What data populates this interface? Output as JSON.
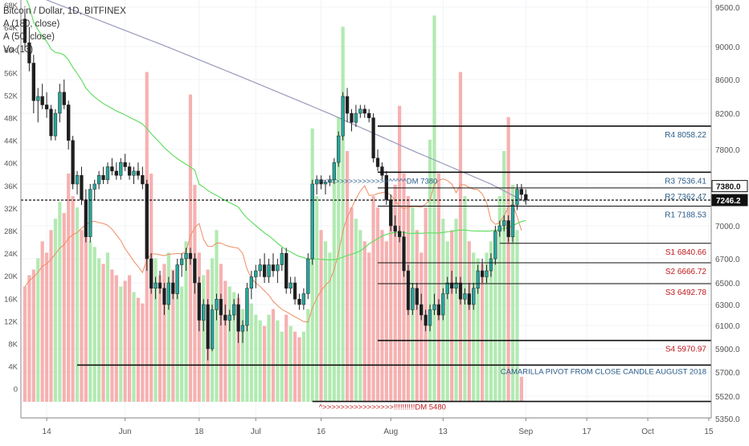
{
  "legend": {
    "title": "Bitcoin / Dollar, 1D, BITFINEX",
    "ma180": "A (180, close)",
    "ma50": "A (50, close)",
    "vol": "Vo (13)"
  },
  "colors": {
    "up": "#26a69a",
    "down": "#ef5350",
    "vol_up": "#a5e6a5",
    "vol_down": "#f4a3a3",
    "ma180": "#9999bb",
    "ma50": "#66dd66",
    "volma": "#f08c60",
    "pivot_blue": "#2b5c8a",
    "pivot_red": "#c0181b",
    "axis_text": "#555555"
  },
  "chart_data": {
    "type": "candlestick",
    "title": "Bitcoin / Dollar, 1D, BITFINEX",
    "price_axis": [
      {
        "value": 9500,
        "label": "9500.0"
      },
      {
        "value": 9000,
        "label": "9000.0"
      },
      {
        "value": 8600,
        "label": "8600.0"
      },
      {
        "value": 8200,
        "label": "8200.0"
      },
      {
        "value": 7800,
        "label": "7800.0"
      },
      {
        "value": 7400,
        "label": "7400.0"
      },
      {
        "value": 7000,
        "label": "7000.0"
      },
      {
        "value": 6700,
        "label": "6700.0"
      },
      {
        "value": 6500,
        "label": "6500.0"
      },
      {
        "value": 6300,
        "label": "6300.0"
      },
      {
        "value": 6100,
        "label": "6100.0"
      },
      {
        "value": 5900,
        "label": "5900.0"
      },
      {
        "value": 5700,
        "label": "5700.0"
      },
      {
        "value": 5520,
        "label": "5520.0"
      },
      {
        "value": 5350,
        "label": "5350.0"
      }
    ],
    "volume_axis": [
      "68K",
      "64K",
      "60K",
      "56K",
      "52K",
      "48K",
      "44K",
      "40K",
      "36K",
      "32K",
      "28K",
      "24K",
      "20K",
      "16K",
      "12K",
      "8K",
      "4K",
      "0"
    ],
    "x_labels": [
      {
        "label": "14",
        "day": 5
      },
      {
        "label": "Jun",
        "day": 23
      },
      {
        "label": "18",
        "day": 40
      },
      {
        "label": "Jul",
        "day": 53
      },
      {
        "label": "16",
        "day": 68
      },
      {
        "label": "Aug",
        "day": 84
      },
      {
        "label": "13",
        "day": 96
      },
      {
        "label": "Sep",
        "day": 115
      },
      {
        "label": "17",
        "day": 129
      },
      {
        "label": "Oct",
        "day": 143
      },
      {
        "label": "15",
        "day": 157
      }
    ],
    "price_markers": [
      {
        "value": 7380,
        "label": "7380.0",
        "style": "outline"
      },
      {
        "value": 7246.2,
        "label": "7246.2",
        "style": "filled"
      }
    ],
    "current_price": 7246.2,
    "pivots": [
      {
        "name": "R4",
        "value": 8058.22,
        "text": "R4  8058.22",
        "color": "blue",
        "start_day": 81
      },
      {
        "name": "R3",
        "value": 7536.41,
        "text": "R3  7536.41",
        "color": "blue",
        "start_day": 81
      },
      {
        "name": "R2",
        "value": 7362.47,
        "text": "R2   7362.47",
        "color": "blue",
        "start_day": 81
      },
      {
        "name": "R1",
        "value": 7188.53,
        "text": "R1  7188.53",
        "color": "blue",
        "start_day": 81
      },
      {
        "name": "S1",
        "value": 6840.66,
        "text": "S1   6840.66",
        "color": "red",
        "start_day": 109
      },
      {
        "name": "S2",
        "value": 6666.72,
        "text": "S2    6666.72",
        "color": "red",
        "start_day": 81
      },
      {
        "name": "S3",
        "value": 6492.78,
        "text": "S3    6492.78",
        "color": "red",
        "start_day": 81
      },
      {
        "name": "S4",
        "value": 5970.97,
        "text": "S4 5970.97",
        "color": "red",
        "start_day": 81
      }
    ],
    "support_line": {
      "value": 5760
    },
    "bottom_line": {
      "value": 5480
    },
    "annotations": [
      {
        "text": "CAMARILLA PIVOT FROM CLOSE CANDLE  AUGUST  2018",
        "color": "blue"
      },
      {
        "text": "^>>>>>>>>>>>>>>>>!!!!!!!!!!DM  5480",
        "color": "red",
        "value": 5480,
        "day": 66
      },
      {
        "text": ">>>>>>>>>>>>>>>>^^^^^DM 7380",
        "color": "blue",
        "value": 7380,
        "day": 66
      }
    ],
    "candles": [
      [
        9350,
        9450,
        8950,
        9050
      ],
      [
        9050,
        9250,
        8700,
        8800
      ],
      [
        8800,
        8900,
        8200,
        8350
      ],
      [
        8350,
        8500,
        8100,
        8400
      ],
      [
        8400,
        8550,
        8250,
        8300
      ],
      [
        8300,
        8450,
        8150,
        8250
      ],
      [
        8250,
        8300,
        7900,
        7950
      ],
      [
        7950,
        8250,
        7900,
        8200
      ],
      [
        8200,
        8550,
        8100,
        8450
      ],
      [
        8450,
        8600,
        8250,
        8300
      ],
      [
        8300,
        8350,
        7800,
        7900
      ],
      [
        7900,
        7950,
        7350,
        7400
      ],
      [
        7400,
        7550,
        7300,
        7500
      ],
      [
        7500,
        7600,
        7200,
        7250
      ],
      [
        7250,
        7350,
        6850,
        6900
      ],
      [
        6900,
        7400,
        6850,
        7350
      ],
      [
        7350,
        7450,
        7250,
        7400
      ],
      [
        7400,
        7550,
        7350,
        7500
      ],
      [
        7500,
        7600,
        7400,
        7450
      ],
      [
        7450,
        7650,
        7400,
        7600
      ],
      [
        7600,
        7700,
        7500,
        7550
      ],
      [
        7550,
        7650,
        7450,
        7500
      ],
      [
        7500,
        7700,
        7450,
        7650
      ],
      [
        7650,
        7750,
        7550,
        7600
      ],
      [
        7600,
        7650,
        7450,
        7500
      ],
      [
        7500,
        7600,
        7400,
        7550
      ],
      [
        7550,
        7650,
        7450,
        7500
      ],
      [
        7500,
        7600,
        7350,
        7400
      ],
      [
        7400,
        7450,
        6600,
        6700
      ],
      [
        6700,
        6750,
        6400,
        6450
      ],
      [
        6450,
        6550,
        6350,
        6500
      ],
      [
        6500,
        6600,
        6400,
        6450
      ],
      [
        6450,
        6500,
        6200,
        6300
      ],
      [
        6300,
        6550,
        6250,
        6500
      ],
      [
        6500,
        6600,
        6350,
        6400
      ],
      [
        6400,
        6700,
        6350,
        6650
      ],
      [
        6650,
        6750,
        6550,
        6700
      ],
      [
        6700,
        6800,
        6600,
        6750
      ],
      [
        6750,
        6800,
        6650,
        6700
      ],
      [
        6700,
        6750,
        6400,
        6500
      ],
      [
        6500,
        6550,
        6050,
        6150
      ],
      [
        6150,
        6350,
        6050,
        6300
      ],
      [
        6300,
        6350,
        5800,
        5900
      ],
      [
        5900,
        6300,
        5880,
        6250
      ],
      [
        6250,
        6400,
        6150,
        6350
      ],
      [
        6350,
        6400,
        6100,
        6200
      ],
      [
        6200,
        6300,
        6100,
        6150
      ],
      [
        6150,
        6250,
        6050,
        6200
      ],
      [
        6200,
        6350,
        6150,
        6300
      ],
      [
        6300,
        6400,
        5950,
        6050
      ],
      [
        6050,
        6150,
        5950,
        6100
      ],
      [
        6100,
        6500,
        6050,
        6450
      ],
      [
        6450,
        6600,
        6350,
        6550
      ],
      [
        6550,
        6650,
        6450,
        6600
      ],
      [
        6600,
        6700,
        6550,
        6650
      ],
      [
        6650,
        6750,
        6500,
        6550
      ],
      [
        6550,
        6700,
        6500,
        6650
      ],
      [
        6650,
        6750,
        6550,
        6600
      ],
      [
        6600,
        6700,
        6500,
        6650
      ],
      [
        6650,
        6800,
        6600,
        6750
      ],
      [
        6750,
        6800,
        6400,
        6450
      ],
      [
        6450,
        6550,
        6400,
        6500
      ],
      [
        6500,
        6550,
        6300,
        6350
      ],
      [
        6350,
        6400,
        6250,
        6300
      ],
      [
        6300,
        6450,
        6250,
        6400
      ],
      [
        6400,
        6750,
        6350,
        6700
      ],
      [
        6700,
        7450,
        6650,
        7400
      ],
      [
        7400,
        7500,
        7300,
        7450
      ],
      [
        7450,
        7500,
        7350,
        7400
      ],
      [
        7400,
        7450,
        7300,
        7420
      ],
      [
        7420,
        7500,
        7380,
        7450
      ],
      [
        7450,
        7700,
        7400,
        7650
      ],
      [
        7650,
        8000,
        7600,
        7950
      ],
      [
        7950,
        8450,
        7900,
        8400
      ],
      [
        8400,
        8500,
        8100,
        8200
      ],
      [
        8200,
        8250,
        8000,
        8100
      ],
      [
        8100,
        8300,
        8050,
        8200
      ],
      [
        8200,
        8300,
        8150,
        8250
      ],
      [
        8250,
        8300,
        8150,
        8200
      ],
      [
        8200,
        8250,
        8100,
        8150
      ],
      [
        8150,
        8200,
        7650,
        7700
      ],
      [
        7700,
        7800,
        7550,
        7600
      ],
      [
        7600,
        7650,
        7450,
        7500
      ],
      [
        7500,
        7550,
        7200,
        7250
      ],
      [
        7250,
        7300,
        6950,
        7000
      ],
      [
        7000,
        7100,
        6900,
        6950
      ],
      [
        6950,
        7000,
        6850,
        6900
      ],
      [
        6900,
        6950,
        6550,
        6600
      ],
      [
        6600,
        6650,
        6200,
        6250
      ],
      [
        6250,
        6500,
        6200,
        6450
      ],
      [
        6450,
        6500,
        6250,
        6300
      ],
      [
        6300,
        6400,
        6150,
        6200
      ],
      [
        6200,
        6250,
        6050,
        6100
      ],
      [
        6100,
        6300,
        6050,
        6250
      ],
      [
        6250,
        6400,
        6200,
        6300
      ],
      [
        6300,
        6350,
        6150,
        6200
      ],
      [
        6200,
        6450,
        6150,
        6400
      ],
      [
        6400,
        6550,
        6350,
        6500
      ],
      [
        6500,
        6600,
        6400,
        6450
      ],
      [
        6450,
        6550,
        6400,
        6500
      ],
      [
        6500,
        6550,
        6300,
        6350
      ],
      [
        6350,
        6450,
        6300,
        6400
      ],
      [
        6400,
        6500,
        6250,
        6300
      ],
      [
        6300,
        6500,
        6250,
        6450
      ],
      [
        6450,
        6650,
        6400,
        6600
      ],
      [
        6600,
        6700,
        6500,
        6550
      ],
      [
        6550,
        6650,
        6500,
        6600
      ],
      [
        6600,
        6750,
        6550,
        6700
      ],
      [
        6700,
        7000,
        6650,
        6950
      ],
      [
        6950,
        7050,
        6900,
        7000
      ],
      [
        7000,
        7100,
        6950,
        7050
      ],
      [
        7050,
        7100,
        6850,
        6900
      ],
      [
        6900,
        7250,
        6850,
        7200
      ],
      [
        7200,
        7400,
        7150,
        7350
      ],
      [
        7350,
        7400,
        7250,
        7300
      ],
      [
        7300,
        7350,
        7200,
        7246
      ]
    ],
    "volume": [
      20000,
      22000,
      23000,
      25000,
      28000,
      26000,
      30000,
      32000,
      35000,
      33000,
      40000,
      36000,
      34000,
      30000,
      31000,
      28000,
      27000,
      25000,
      24000,
      26000,
      23000,
      22000,
      20000,
      21000,
      22000,
      19000,
      18000,
      17000,
      58000,
      40000,
      25000,
      22000,
      24000,
      26000,
      23000,
      21000,
      20000,
      28000,
      54000,
      38000,
      26000,
      22000,
      23000,
      25000,
      30000,
      24000,
      21000,
      20000,
      19000,
      18000,
      16000,
      18000,
      17000,
      15000,
      14000,
      13000,
      15000,
      16000,
      14000,
      12000,
      15000,
      13000,
      12000,
      11000,
      12000,
      16000,
      48000,
      36000,
      30000,
      28000,
      26000,
      40000,
      50000,
      66000,
      44000,
      34000,
      32000,
      30000,
      28000,
      26000,
      36000,
      34000,
      30000,
      28000,
      32000,
      38000,
      52000,
      40000,
      36000,
      34000,
      30000,
      26000,
      34000,
      46000,
      68000,
      40000,
      32000,
      28000,
      30000,
      32000,
      58000,
      36000,
      28000,
      26000,
      25000,
      24000,
      26000,
      28000,
      30000,
      36000,
      44000,
      50000,
      38000,
      30000,
      4000
    ]
  }
}
